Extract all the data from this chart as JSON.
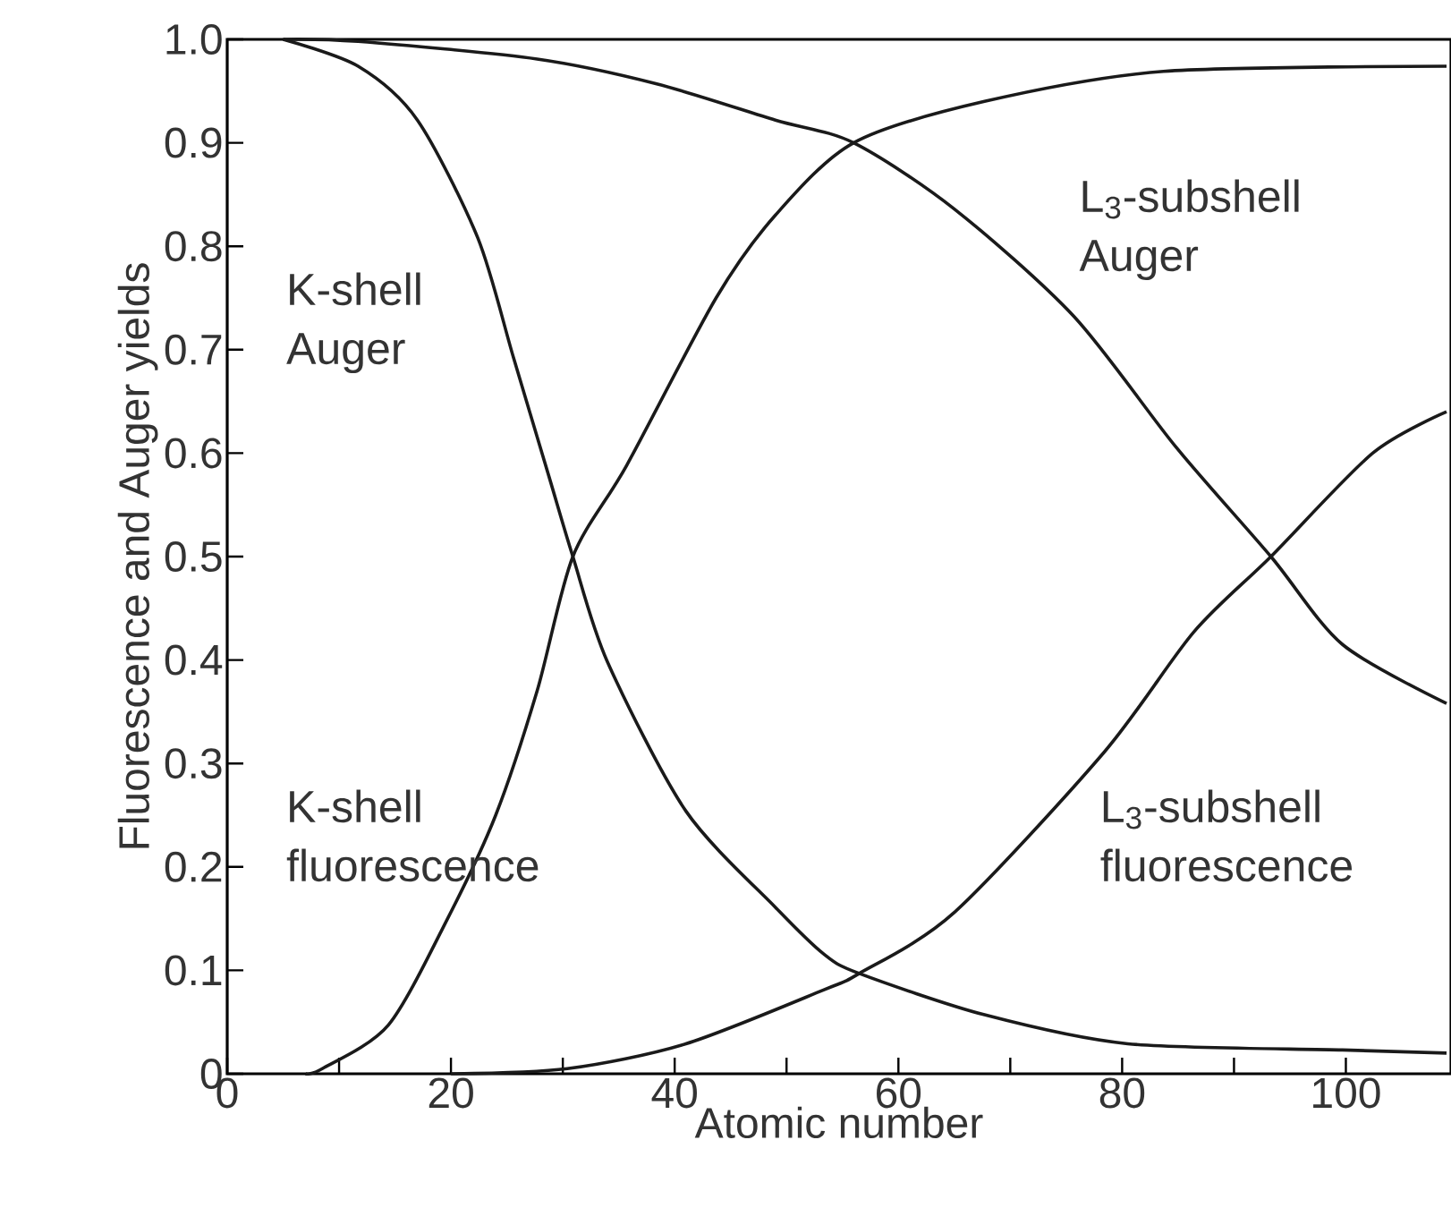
{
  "chart_data": {
    "type": "line",
    "xlabel": "Atomic number",
    "ylabel": "Fluorescence and Auger yields",
    "xlim": [
      0,
      109.4
    ],
    "ylim": [
      0,
      1
    ],
    "xticks": [
      0,
      {
        "value": 10,
        "label": null
      },
      20,
      {
        "value": 30,
        "label": null
      },
      40,
      {
        "value": 50,
        "label": null
      },
      60,
      {
        "value": 70,
        "label": null
      },
      80,
      {
        "value": 90,
        "label": null
      },
      100
    ],
    "yticks": [
      0,
      0.1,
      0.2,
      0.3,
      0.4,
      0.5,
      0.6,
      0.7,
      0.8,
      0.9,
      {
        "value": 1,
        "label": "1.0"
      }
    ],
    "grid": false,
    "legend": false,
    "marker": "none",
    "line_style": "solid",
    "series": [
      {
        "name": "K-shell Auger",
        "color": "#1a1a1a",
        "x": [
          5,
          11.7,
          17,
          22.4,
          25.6,
          28.8,
          30.9,
          34,
          41,
          49,
          53.3,
          56.5,
          67.7,
          80.5,
          99.7,
          109
        ],
        "values": [
          1.0,
          0.974,
          0.922,
          0.808,
          0.692,
          0.576,
          0.5,
          0.398,
          0.254,
          0.161,
          0.116,
          0.097,
          0.057,
          0.029,
          0.023,
          0.02
        ]
      },
      {
        "name": "K-shell fluorescence",
        "color": "#1a1a1a",
        "x": [
          7,
          8.5,
          14.4,
          19.7,
          24,
          27.7,
          30.9,
          35.7,
          43.7,
          49,
          56,
          67.7,
          83.7,
          109
        ],
        "values": [
          0.0,
          0.005,
          0.047,
          0.15,
          0.25,
          0.37,
          0.5,
          0.588,
          0.75,
          0.83,
          0.9,
          0.94,
          0.969,
          0.974
        ]
      },
      {
        "name": "L$_{3}$-subshell Auger",
        "color": "#1a1a1a",
        "x": [
          5,
          11.7,
          27.7,
          38.4,
          49,
          56,
          65,
          75.7,
          84.8,
          93.3,
          99.7,
          109
        ],
        "values": [
          1.0,
          0.998,
          0.981,
          0.957,
          0.922,
          0.9,
          0.836,
          0.732,
          0.606,
          0.5,
          0.415,
          0.358
        ]
      },
      {
        "name": "L$_{3}$-subshell fluorescence",
        "color": "#1a1a1a",
        "x": [
          20,
          30.4,
          41,
          53.3,
          56.5,
          65,
          78.4,
          86.4,
          93.3,
          102.4,
          109
        ],
        "values": [
          0.0,
          0.005,
          0.029,
          0.081,
          0.097,
          0.156,
          0.311,
          0.427,
          0.5,
          0.6,
          0.64
        ]
      }
    ]
  }
}
